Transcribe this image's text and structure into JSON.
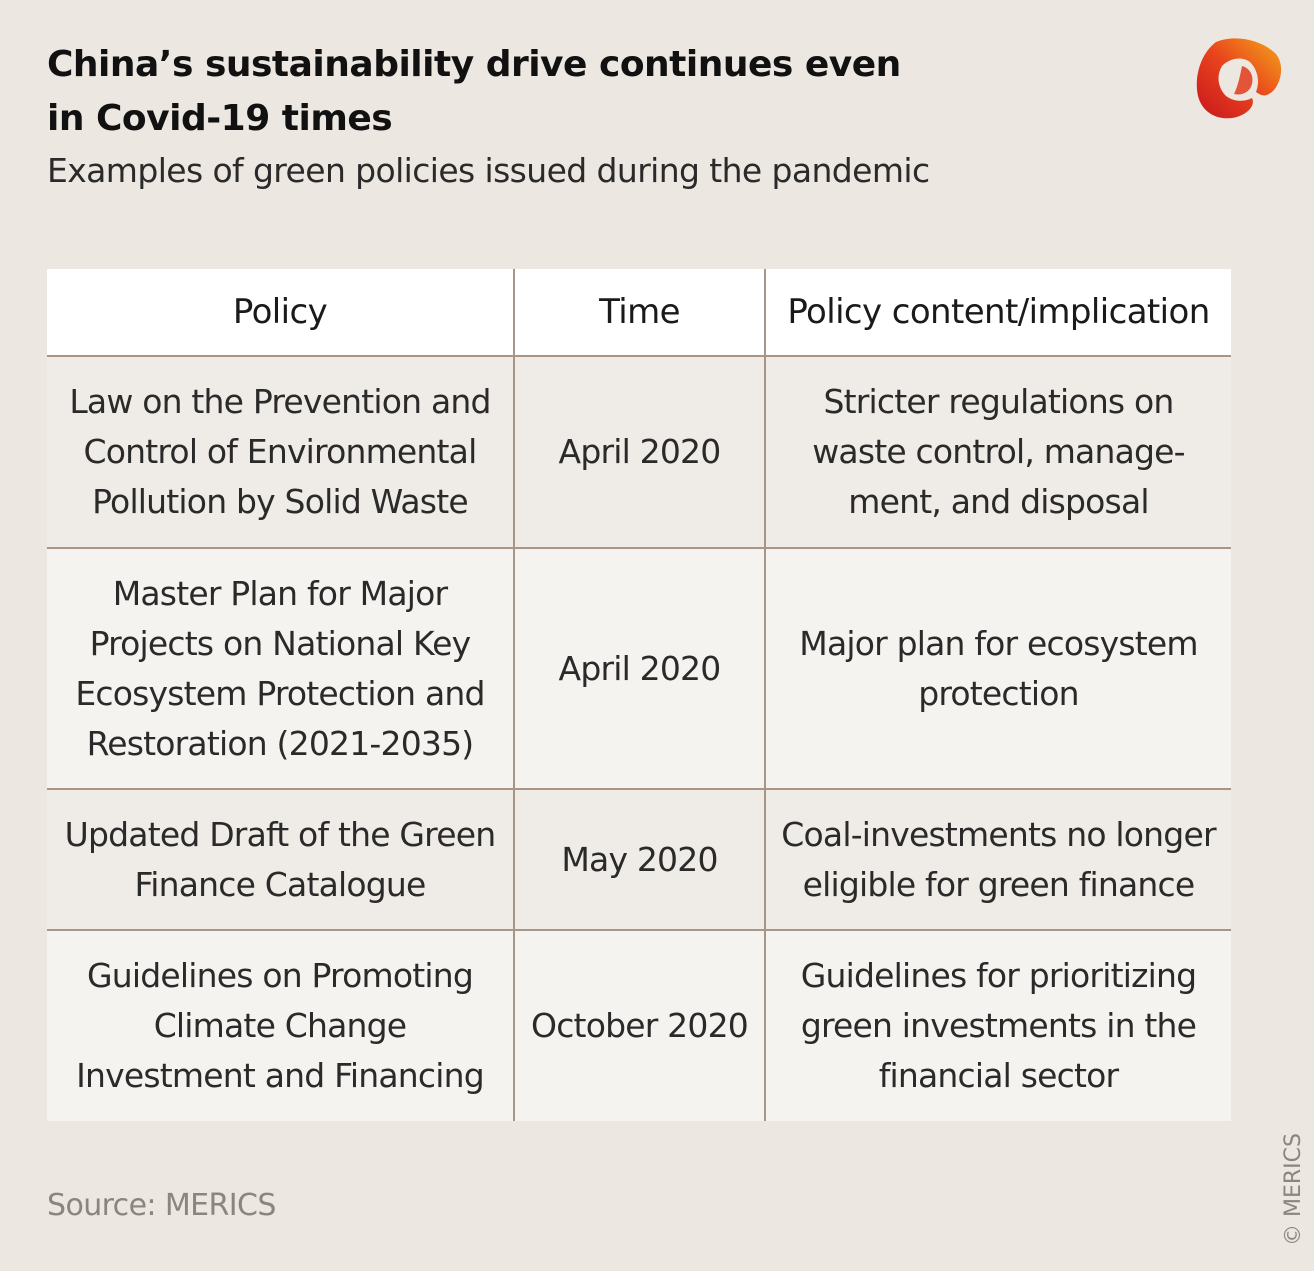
{
  "header": {
    "title": "China’s sustainability drive continues even in Covid-19 times",
    "subtitle": "Examples of green policies issued during the pandemic"
  },
  "brand": {
    "logo_icon": "merics-logo-icon",
    "colors": [
      "#d9261c",
      "#f08a1c",
      "#f5b11a"
    ]
  },
  "table": {
    "headers": [
      "Policy",
      "Time",
      "Policy content/implication"
    ],
    "rows": [
      {
        "policy": "Law on the Prevention and Control of Environmental Pollution by Solid Waste",
        "time": "April 2020",
        "content": "Stricter regulations on waste control, manage-ment, and disposal"
      },
      {
        "policy": "Master Plan for Major Projects on National Key Ecosystem Protection and Restoration (2021-2035)",
        "time": "April 2020",
        "content": "Major plan for ecosystem protection"
      },
      {
        "policy": "Updated Draft of the Green Finance Catalogue",
        "time": "May 2020",
        "content": "Coal-investments no longer eligible for green finance"
      },
      {
        "policy": "Guidelines on Promoting Climate Change Investment and Financing",
        "time": "October 2020",
        "content": "Guidelines for prioritizing green investments in the financial sector"
      }
    ]
  },
  "footer": {
    "source": "Source: MERICS",
    "copyright": "© MERICS"
  }
}
